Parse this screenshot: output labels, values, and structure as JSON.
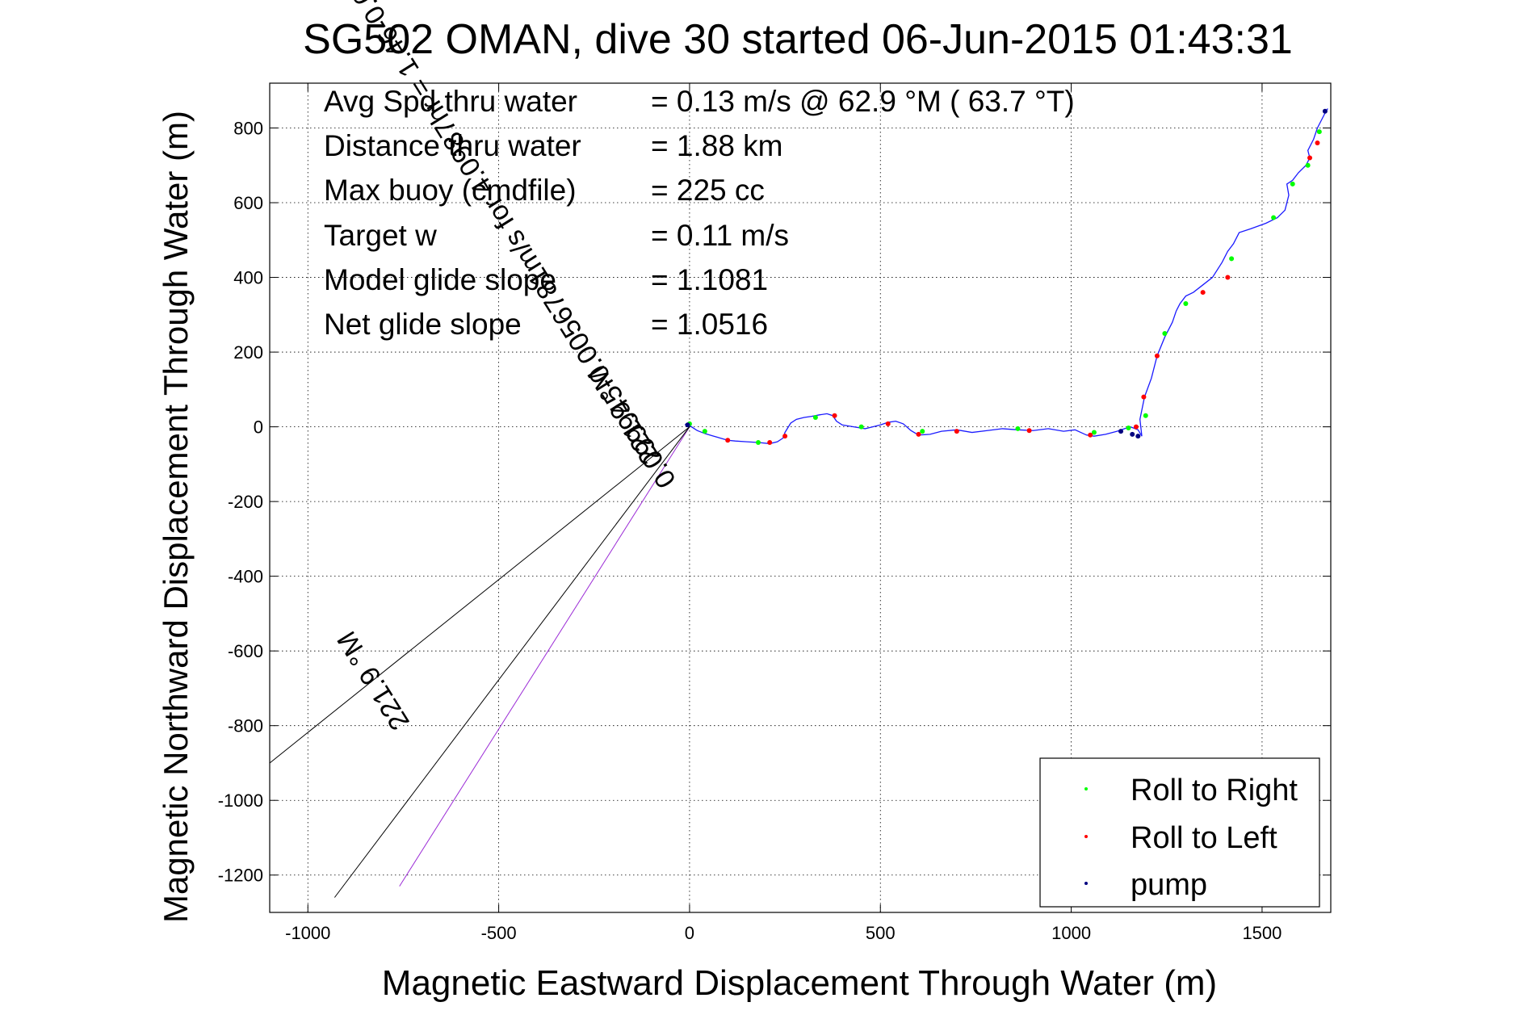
{
  "chart_data": {
    "type": "scatter",
    "title": "SG502 OMAN, dive 30 started 06-Jun-2015 01:43:31",
    "xlabel": "Magnetic Eastward Displacement Through Water (m)",
    "ylabel": "Magnetic Northward Displacement Through Water (m)",
    "xlim": [
      -1100,
      1680
    ],
    "ylim": [
      -1300,
      920
    ],
    "xticks": [
      -1000,
      -500,
      0,
      500,
      1000,
      1500
    ],
    "yticks": [
      -1200,
      -1000,
      -800,
      -600,
      -400,
      -200,
      0,
      200,
      400,
      600,
      800
    ],
    "grid": true,
    "legend_position": "bottom-right",
    "stats": [
      {
        "label": "Avg Spd thru water",
        "value": "=  0.13 m/s @  62.9 °M ( 63.7 °T)"
      },
      {
        "label": "Distance thru water",
        "value": "=  1.88 km"
      },
      {
        "label": "Max buoy (cmdfile)",
        "value": "= 225 cc"
      },
      {
        "label": "Target w",
        "value": "= 0.11 m/s"
      },
      {
        "label": "Model glide slope",
        "value": "= 1.1081"
      },
      {
        "label": "Net glide slope",
        "value": "= 1.0516"
      }
    ],
    "current_lines": [
      {
        "label": "221.9 °M",
        "from": [
          0,
          0
        ],
        "to": [
          -1100,
          -900
        ]
      },
      {
        "label": "0.099945-0.0056781m/s for 4.0987hr = 1.46-0.083km",
        "from": [
          0,
          0
        ],
        "to": [
          -760,
          -1230
        ]
      },
      {
        "label": "221.9 °M",
        "from": [
          0,
          0
        ],
        "to": [
          -930,
          -1260
        ]
      }
    ],
    "series": [
      {
        "name": "Roll to Right",
        "color": "#00ff00",
        "x": [
          0,
          40,
          180,
          330,
          450,
          610,
          860,
          1060,
          1150,
          1195,
          1245,
          1300,
          1420,
          1530,
          1580,
          1620,
          1650
        ],
        "y": [
          8,
          -12,
          -42,
          25,
          0,
          -12,
          -5,
          -15,
          -3,
          30,
          250,
          330,
          450,
          560,
          650,
          700,
          790
        ]
      },
      {
        "name": "Roll to Left",
        "color": "#ff0000",
        "x": [
          100,
          210,
          250,
          380,
          520,
          600,
          700,
          890,
          1050,
          1170,
          1190,
          1225,
          1345,
          1410,
          1625,
          1645
        ],
        "y": [
          -36,
          -42,
          -25,
          30,
          8,
          -20,
          -12,
          -10,
          -22,
          0,
          80,
          190,
          360,
          400,
          720,
          760
        ]
      },
      {
        "name": "pump",
        "color": "#000080",
        "x": [
          -5,
          1130,
          1160,
          1175,
          1665
        ],
        "y": [
          5,
          -12,
          -20,
          -25,
          845
        ]
      }
    ],
    "track": {
      "x": [
        -12,
        -5,
        5,
        20,
        40,
        60,
        80,
        100,
        120,
        150,
        180,
        210,
        230,
        245,
        250,
        265,
        280,
        300,
        320,
        340,
        360,
        375,
        385,
        400,
        430,
        460,
        480,
        500,
        520,
        540,
        560,
        580,
        600,
        630,
        660,
        700,
        740,
        780,
        820,
        860,
        900,
        940,
        980,
        1010,
        1040,
        1060,
        1090,
        1120,
        1140,
        1155,
        1175,
        1185,
        1180,
        1192,
        1210,
        1225,
        1245,
        1265,
        1275,
        1285,
        1300,
        1320,
        1345,
        1370,
        1395,
        1410,
        1425,
        1440,
        1470,
        1510,
        1540,
        1560,
        1570,
        1565,
        1580,
        1595,
        1615,
        1625,
        1620,
        1635,
        1645,
        1655,
        1665,
        1672
      ],
      "y": [
        5,
        10,
        0,
        -10,
        -18,
        -24,
        -30,
        -36,
        -38,
        -40,
        -42,
        -45,
        -40,
        -30,
        -15,
        10,
        20,
        25,
        28,
        32,
        35,
        30,
        15,
        5,
        0,
        -5,
        0,
        5,
        12,
        15,
        8,
        -10,
        -22,
        -20,
        -12,
        -8,
        -15,
        -10,
        -5,
        -8,
        -10,
        -5,
        -12,
        -8,
        -22,
        -25,
        -20,
        -12,
        -5,
        0,
        -8,
        -25,
        20,
        80,
        130,
        190,
        240,
        280,
        310,
        330,
        350,
        360,
        380,
        400,
        440,
        470,
        490,
        520,
        530,
        545,
        560,
        580,
        620,
        650,
        660,
        680,
        700,
        720,
        740,
        770,
        800,
        820,
        840,
        852
      ]
    }
  }
}
